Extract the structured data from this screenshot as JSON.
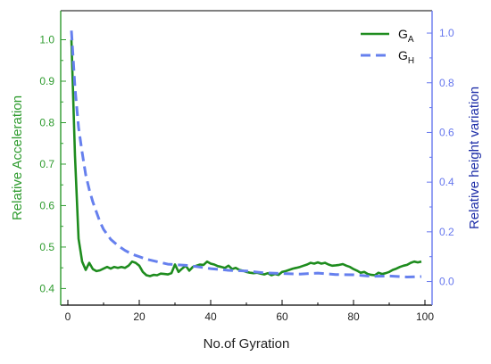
{
  "chart_data": {
    "type": "line",
    "xlabel": "No.of Gyration",
    "ylabel_left": "Relative Acceleration",
    "ylabel_right": "Relative  height variation",
    "xlim": [
      -2,
      102
    ],
    "ylim_left": [
      0.36,
      1.07
    ],
    "ylim_right": [
      -0.095,
      1.09
    ],
    "x_ticks": [
      0,
      20,
      40,
      60,
      80,
      100
    ],
    "y_left_ticks": [
      0.4,
      0.5,
      0.6,
      0.7,
      0.8,
      0.9,
      1.0
    ],
    "y_right_ticks": [
      0.0,
      0.2,
      0.4,
      0.6,
      0.8,
      1.0
    ],
    "legend_position": "top-right",
    "colors": {
      "left_axis": "#2e9b2e",
      "right_axis": "#6677ee",
      "right_axis_title": "#1f2fa8",
      "series_a": "#1e8c1e",
      "series_h": "#6680ee"
    },
    "series": [
      {
        "name": "GA",
        "name_main": "G",
        "name_sub": "A",
        "axis": "left",
        "style": "solid",
        "x": [
          1,
          2,
          3,
          4,
          5,
          6,
          7,
          8,
          9,
          10,
          11,
          12,
          13,
          14,
          15,
          16,
          17,
          18,
          19,
          20,
          21,
          22,
          23,
          24,
          25,
          26,
          27,
          28,
          29,
          30,
          31,
          32,
          33,
          34,
          35,
          36,
          37,
          38,
          39,
          40,
          41,
          42,
          43,
          44,
          45,
          46,
          47,
          48,
          49,
          50,
          51,
          52,
          53,
          54,
          55,
          56,
          57,
          58,
          59,
          60,
          61,
          62,
          63,
          64,
          65,
          66,
          67,
          68,
          69,
          70,
          71,
          72,
          73,
          74,
          75,
          76,
          77,
          78,
          79,
          80,
          81,
          82,
          83,
          84,
          85,
          86,
          87,
          88,
          89,
          90,
          91,
          92,
          93,
          94,
          95,
          96,
          97,
          98,
          99
        ],
        "values": [
          1.0,
          0.72,
          0.52,
          0.465,
          0.445,
          0.462,
          0.447,
          0.442,
          0.444,
          0.448,
          0.452,
          0.448,
          0.452,
          0.45,
          0.452,
          0.45,
          0.455,
          0.465,
          0.462,
          0.455,
          0.44,
          0.432,
          0.43,
          0.433,
          0.432,
          0.436,
          0.435,
          0.434,
          0.437,
          0.458,
          0.44,
          0.448,
          0.455,
          0.443,
          0.452,
          0.455,
          0.458,
          0.457,
          0.465,
          0.46,
          0.458,
          0.454,
          0.452,
          0.45,
          0.455,
          0.447,
          0.45,
          0.445,
          0.443,
          0.44,
          0.438,
          0.437,
          0.438,
          0.436,
          0.434,
          0.437,
          0.432,
          0.435,
          0.433,
          0.44,
          0.442,
          0.445,
          0.448,
          0.45,
          0.452,
          0.455,
          0.458,
          0.462,
          0.46,
          0.463,
          0.46,
          0.462,
          0.458,
          0.455,
          0.456,
          0.457,
          0.459,
          0.455,
          0.452,
          0.447,
          0.443,
          0.438,
          0.44,
          0.435,
          0.433,
          0.432,
          0.438,
          0.435,
          0.437,
          0.44,
          0.445,
          0.448,
          0.452,
          0.455,
          0.457,
          0.462,
          0.465,
          0.463,
          0.465
        ]
      },
      {
        "name": "GH",
        "name_main": "G",
        "name_sub": "H",
        "axis": "right",
        "style": "dashed",
        "x": [
          1,
          2,
          3,
          4,
          5,
          6,
          7,
          8,
          9,
          10,
          12,
          14,
          16,
          18,
          20,
          22,
          25,
          28,
          30,
          33,
          36,
          40,
          45,
          50,
          55,
          60,
          65,
          70,
          75,
          80,
          85,
          90,
          95,
          99
        ],
        "values": [
          1.01,
          0.78,
          0.62,
          0.52,
          0.43,
          0.37,
          0.32,
          0.28,
          0.24,
          0.21,
          0.17,
          0.145,
          0.125,
          0.11,
          0.1,
          0.09,
          0.08,
          0.07,
          0.068,
          0.065,
          0.06,
          0.052,
          0.045,
          0.042,
          0.035,
          0.032,
          0.03,
          0.034,
          0.028,
          0.027,
          0.021,
          0.022,
          0.018,
          0.02
        ]
      }
    ]
  }
}
